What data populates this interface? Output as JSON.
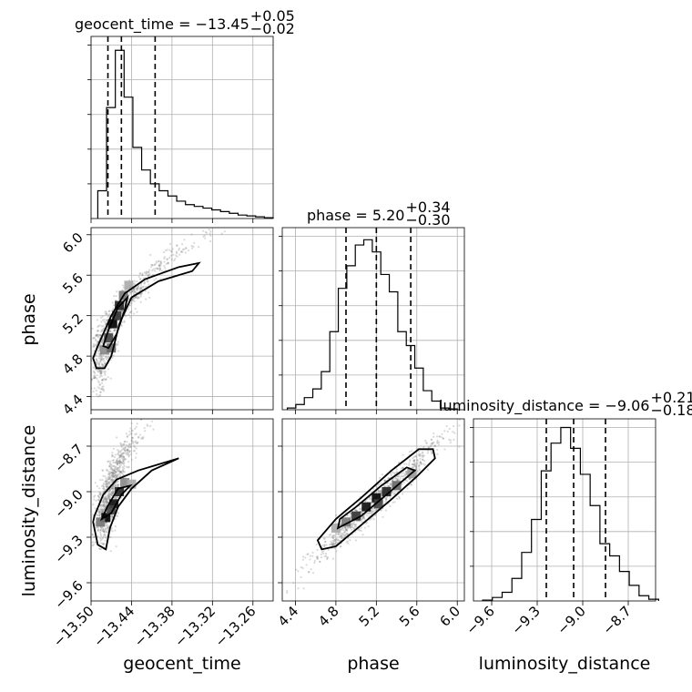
{
  "chart_data": {
    "type": "corner",
    "parameters": [
      {
        "name": "geocent_time",
        "median": -13.45,
        "plus": "0.05",
        "minus": "0.02",
        "range": [
          -13.5,
          -13.23
        ],
        "ticks": [
          "−13.50",
          "−13.44",
          "−13.38",
          "−13.32",
          "−13.26"
        ],
        "tick_values": [
          -13.5,
          -13.44,
          -13.38,
          -13.32,
          -13.26
        ],
        "quantiles": [
          -13.475,
          -13.455,
          -13.405
        ]
      },
      {
        "name": "phase",
        "median": 5.2,
        "plus": "0.34",
        "minus": "0.30",
        "range": [
          4.27,
          6.07
        ],
        "ticks": [
          "4.4",
          "4.8",
          "5.2",
          "5.6",
          "6.0"
        ],
        "tick_values": [
          4.4,
          4.8,
          5.2,
          5.6,
          6.0
        ],
        "quantiles": [
          4.9,
          5.2,
          5.54
        ]
      },
      {
        "name": "luminosity_distance",
        "median": -9.06,
        "plus": "0.21",
        "minus": "0.18",
        "range": [
          -9.72,
          -8.52
        ],
        "ticks": [
          "−9.6",
          "−9.3",
          "−9.0",
          "−8.7"
        ],
        "tick_values": [
          -9.6,
          -9.3,
          -9.0,
          -8.7
        ],
        "quantiles": [
          -9.24,
          -9.06,
          -8.85
        ]
      }
    ],
    "titles": [
      "geocent_time = −13.45",
      "phase = 5.20",
      "luminosity_distance = −9.06"
    ],
    "histograms": {
      "geocent_time": [
        0.16,
        0.64,
        0.97,
        0.7,
        0.41,
        0.28,
        0.2,
        0.16,
        0.13,
        0.1,
        0.08,
        0.07,
        0.06,
        0.05,
        0.04,
        0.03,
        0.02,
        0.015,
        0.01,
        0.005
      ],
      "phase": [
        0.01,
        0.03,
        0.07,
        0.12,
        0.22,
        0.45,
        0.7,
        0.83,
        0.95,
        0.98,
        0.91,
        0.78,
        0.68,
        0.45,
        0.37,
        0.24,
        0.11,
        0.05,
        0.01,
        0.005
      ],
      "luminosity_distance": [
        0.005,
        0.02,
        0.05,
        0.13,
        0.28,
        0.47,
        0.75,
        0.91,
        1.0,
        0.88,
        0.73,
        0.55,
        0.33,
        0.26,
        0.17,
        0.09,
        0.03,
        0.01
      ]
    },
    "grid": true
  }
}
